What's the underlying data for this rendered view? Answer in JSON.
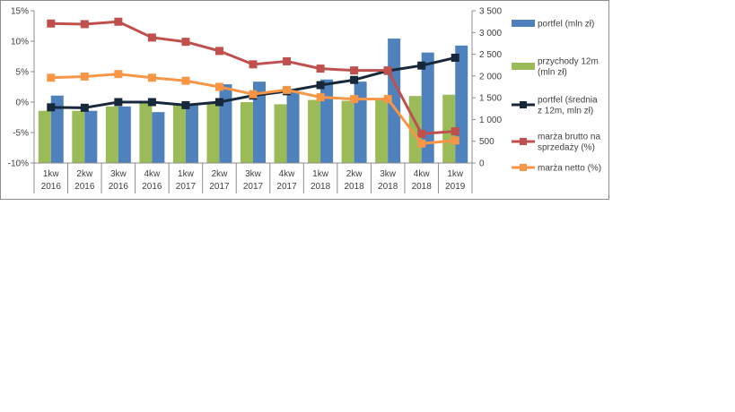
{
  "chart_data": {
    "type": "bar+line",
    "categories": [
      [
        "1kw",
        "2016"
      ],
      [
        "2kw",
        "2016"
      ],
      [
        "3kw",
        "2016"
      ],
      [
        "4kw",
        "2016"
      ],
      [
        "1kw",
        "2017"
      ],
      [
        "2kw",
        "2017"
      ],
      [
        "3kw",
        "2017"
      ],
      [
        "4kw",
        "2017"
      ],
      [
        "1kw",
        "2018"
      ],
      [
        "2kw",
        "2018"
      ],
      [
        "3kw",
        "2018"
      ],
      [
        "4kw",
        "2018"
      ],
      [
        "1kw",
        "2019"
      ]
    ],
    "y_left": {
      "ticks": [
        "15%",
        "10%",
        "5%",
        "0%",
        "-5%",
        "-10%"
      ],
      "range": [
        -10,
        15
      ]
    },
    "y_right": {
      "ticks": [
        "3 500",
        "3 000",
        "2 500",
        "2 000",
        "1 500",
        "1 000",
        "500",
        "0"
      ],
      "range": [
        0,
        3500
      ]
    },
    "series": [
      {
        "name": "portfel (mln zł)",
        "kind": "bar",
        "axis": "right",
        "color": "#4f81bd",
        "values": [
          1550,
          1200,
          1300,
          1170,
          1330,
          1810,
          1870,
          1650,
          1920,
          1870,
          2860,
          2540,
          2700
        ]
      },
      {
        "name": "przychody 12m (mln zł)",
        "kind": "bar",
        "axis": "right",
        "color": "#9bbb59",
        "values": [
          1200,
          1200,
          1300,
          1400,
          1330,
          1400,
          1400,
          1350,
          1450,
          1430,
          1490,
          1540,
          1570
        ]
      },
      {
        "name": "portfel (średnia z 12m, mln zł)",
        "kind": "line",
        "axis": "right",
        "color": "#17283b",
        "values": [
          1280,
          1270,
          1400,
          1400,
          1330,
          1400,
          1550,
          1650,
          1790,
          1910,
          2120,
          2240,
          2420
        ]
      },
      {
        "name": "marża brutto na sprzedaży (%)",
        "kind": "line",
        "axis": "left",
        "color": "#c0504d",
        "values": [
          12.9,
          12.8,
          13.2,
          10.6,
          9.9,
          8.4,
          6.2,
          6.7,
          5.5,
          5.2,
          5.2,
          -5.2,
          -4.8
        ]
      },
      {
        "name": "marża netto (%)",
        "kind": "line",
        "axis": "left",
        "color": "#f79646",
        "values": [
          4.0,
          4.2,
          4.6,
          4.0,
          3.5,
          2.5,
          1.3,
          2.0,
          0.8,
          0.5,
          0.5,
          -6.8,
          -6.3
        ]
      }
    ],
    "legend": {
      "placement": "right",
      "entries": [
        [
          "portfel (mln zł)"
        ],
        [
          "przychody 12m",
          "(mln zł)"
        ],
        [
          "portfel (średnia",
          "z 12m, mln zł)"
        ],
        [
          "marża brutto na",
          "sprzedaży (%)"
        ],
        [
          "marża netto (%)"
        ]
      ]
    },
    "grid": false
  }
}
